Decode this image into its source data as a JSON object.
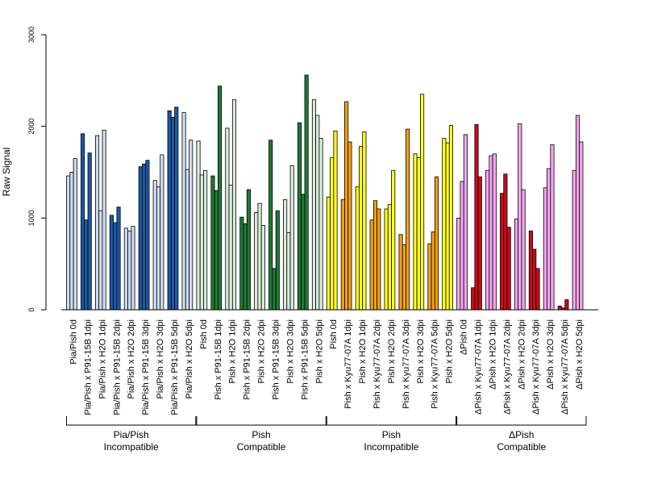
{
  "chart_data": {
    "type": "bar",
    "ylabel": "Raw Signal",
    "ylim": [
      0,
      3000
    ],
    "yticks": [
      0,
      1000,
      2000,
      3000
    ],
    "bars_per_category": 3,
    "categories": [
      {
        "label": "Pia/Pish 0d",
        "values": [
          1460,
          1500,
          1650
        ],
        "color": "#cfdcf0"
      },
      {
        "label": "Pia/Pish x P91-15B 1dpi",
        "values": [
          1920,
          980,
          1710
        ],
        "color": "#1c5aa6"
      },
      {
        "label": "Pia/Pish x H2O 1dpi",
        "values": [
          1900,
          1080,
          1960
        ],
        "color": "#cfdcf0"
      },
      {
        "label": "Pia/Pish x P91-15B 2dpi",
        "values": [
          1030,
          950,
          1120
        ],
        "color": "#1c5aa6"
      },
      {
        "label": "Pia/Pish x H2O 2dpi",
        "values": [
          890,
          860,
          910
        ],
        "color": "#cfdcf0"
      },
      {
        "label": "Pia/Pish x P91-15B 3dpi",
        "values": [
          1560,
          1590,
          1630
        ],
        "color": "#1c5aa6"
      },
      {
        "label": "Pia/Pish x H2O 3dpi",
        "values": [
          1410,
          1340,
          1690
        ],
        "color": "#cfdcf0"
      },
      {
        "label": "Pia/Pish x P91-15B 5dpi",
        "values": [
          2170,
          2100,
          2210
        ],
        "color": "#1c5aa6"
      },
      {
        "label": "Pia/Pish x H2O 5dpi",
        "values": [
          2150,
          1530,
          1850
        ],
        "color": "#cfdcf0"
      },
      {
        "label": "Pish 0d",
        "values": [
          1840,
          1470,
          1520
        ],
        "color": "#d9ecd9"
      },
      {
        "label": "Pish x P91-15B 1dpi",
        "values": [
          1460,
          1300,
          2440
        ],
        "color": "#217a35"
      },
      {
        "label": "Pish x H2O 1dpi",
        "values": [
          1980,
          1360,
          2290
        ],
        "color": "#d9ecd9"
      },
      {
        "label": "Pish x P91-15B 2dpi",
        "values": [
          1010,
          940,
          1310
        ],
        "color": "#217a35"
      },
      {
        "label": "Pish x H2O 2dpi",
        "values": [
          1060,
          1160,
          920
        ],
        "color": "#d9ecd9"
      },
      {
        "label": "Pish x P91-15B 3dpi",
        "values": [
          1850,
          450,
          1080
        ],
        "color": "#217a35"
      },
      {
        "label": "Pish x H2O 3dpi",
        "values": [
          1200,
          840,
          1570
        ],
        "color": "#d9ecd9"
      },
      {
        "label": "Pish x P91-15B 5dpi",
        "values": [
          2040,
          1260,
          2560
        ],
        "color": "#217a35"
      },
      {
        "label": "Pish x H2O 5dpi",
        "values": [
          2290,
          2120,
          1870
        ],
        "color": "#d9ecd9"
      },
      {
        "label": "Pish 0d",
        "values": [
          1230,
          1660,
          1950
        ],
        "color": "#ffff22"
      },
      {
        "label": "Pish x Kyu77-07A 1dpi",
        "values": [
          1200,
          2270,
          1830
        ],
        "color": "#f2a116"
      },
      {
        "label": "Pish x H2O 1dpi",
        "values": [
          1340,
          1780,
          1940
        ],
        "color": "#ffff22"
      },
      {
        "label": "Pish x Kyu77-07A 2dpi",
        "values": [
          980,
          1190,
          1100
        ],
        "color": "#f2a116"
      },
      {
        "label": "Pish x H2O 2dpi",
        "values": [
          1100,
          1150,
          1520
        ],
        "color": "#ffff22"
      },
      {
        "label": "Pish x Kyu77-07A 3dpi",
        "values": [
          820,
          710,
          1970
        ],
        "color": "#f2a116"
      },
      {
        "label": "Pish x H2O 3dpi",
        "values": [
          1700,
          1660,
          2350
        ],
        "color": "#ffff22"
      },
      {
        "label": "Pish x Kyu77-07A 5dpi",
        "values": [
          720,
          850,
          1450
        ],
        "color": "#f2a116"
      },
      {
        "label": "Pish x H2O 5dpi",
        "values": [
          1870,
          1820,
          2010
        ],
        "color": "#ffff22"
      },
      {
        "label": "ΔPish 0d",
        "values": [
          1000,
          1400,
          1910
        ],
        "color": "#f4a7ef"
      },
      {
        "label": "ΔPish x Kyu77-07A 1dpi",
        "values": [
          240,
          2020,
          1450
        ],
        "color": "#cc0a1a"
      },
      {
        "label": "ΔPish x H2O 1dpi",
        "values": [
          1520,
          1680,
          1700
        ],
        "color": "#f4a7ef"
      },
      {
        "label": "ΔPish x Kyu77-07A 2dpi",
        "values": [
          1270,
          1480,
          900
        ],
        "color": "#cc0a1a"
      },
      {
        "label": "ΔPish x H2O 2dpi",
        "values": [
          990,
          2030,
          1310
        ],
        "color": "#f4a7ef"
      },
      {
        "label": "ΔPish x Kyu77-07A 3dpi",
        "values": [
          860,
          660,
          450
        ],
        "color": "#cc0a1a"
      },
      {
        "label": "ΔPish x H2O 3dpi",
        "values": [
          1330,
          1540,
          1800
        ],
        "color": "#f4a7ef"
      },
      {
        "label": "ΔPish x Kyu77-07A 5dpi",
        "values": [
          40,
          20,
          110
        ],
        "color": "#cc0a1a"
      },
      {
        "label": "ΔPish x H2O 5dpi",
        "values": [
          1520,
          2120,
          1830
        ],
        "color": "#f4a7ef"
      }
    ],
    "groups": [
      {
        "line1": "Pia/Pish",
        "line2": "Incompatible",
        "categories": [
          0,
          8
        ]
      },
      {
        "line1": "Pish",
        "line2": "Compatible",
        "categories": [
          9,
          17
        ]
      },
      {
        "line1": "Pish",
        "line2": "Incompatible",
        "categories": [
          18,
          26
        ]
      },
      {
        "line1": "ΔPish",
        "line2": "Compatible",
        "categories": [
          27,
          35
        ]
      }
    ]
  }
}
